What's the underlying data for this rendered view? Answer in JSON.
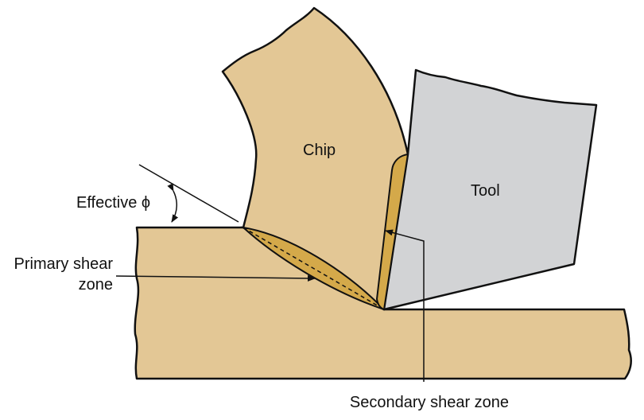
{
  "diagram": {
    "labels": {
      "chip": "Chip",
      "tool": "Tool",
      "effective_angle": "Effective ϕ",
      "primary_line1": "Primary shear",
      "primary_line2": "zone",
      "secondary": "Secondary shear zone"
    },
    "colors": {
      "workpiece": "#E3C795",
      "chip": "#E3C795",
      "tool": "#D2D3D5",
      "shear_zone": "#D4A94A",
      "outline": "#111111"
    }
  }
}
